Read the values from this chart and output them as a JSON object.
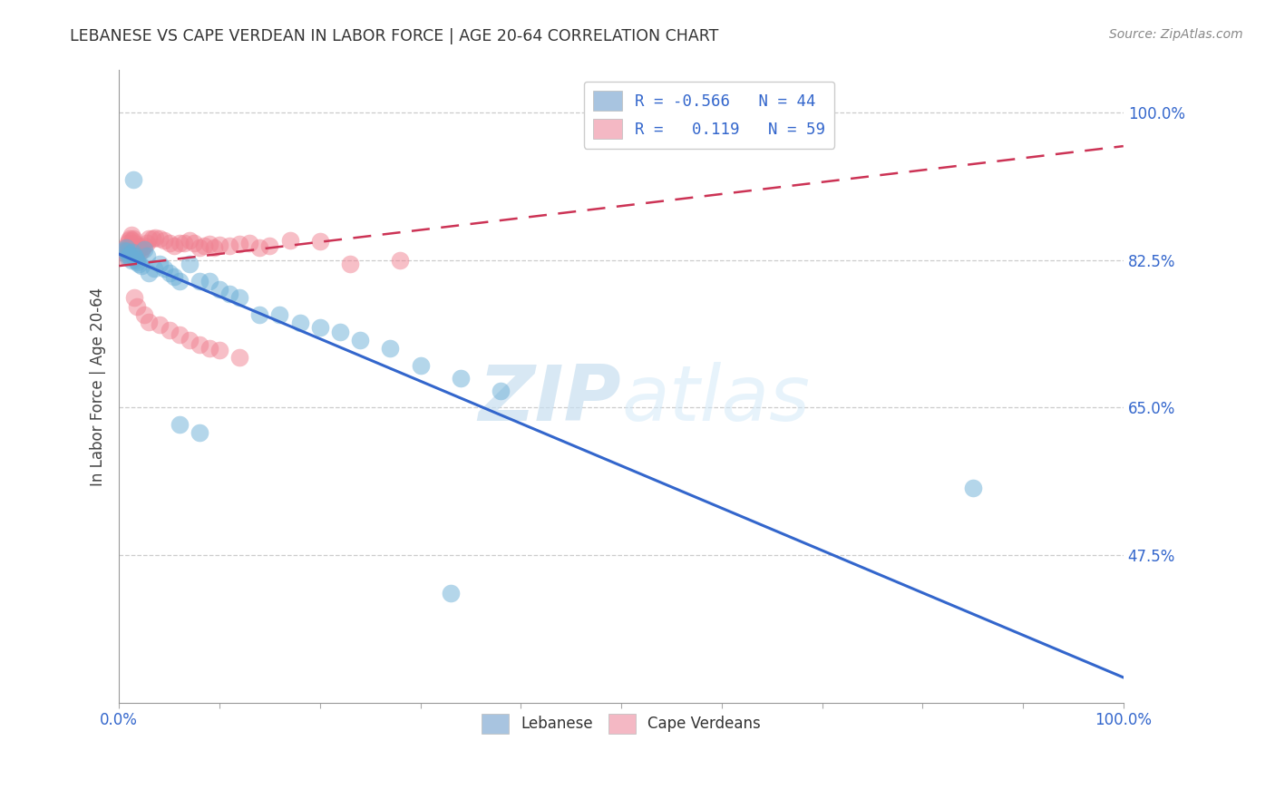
{
  "title": "LEBANESE VS CAPE VERDEAN IN LABOR FORCE | AGE 20-64 CORRELATION CHART",
  "source": "Source: ZipAtlas.com",
  "ylabel": "In Labor Force | Age 20-64",
  "watermark_zip": "ZIP",
  "watermark_atlas": "atlas",
  "xmin": 0.0,
  "xmax": 1.0,
  "ymin": 0.3,
  "ymax": 1.05,
  "ytick_vals": [
    0.475,
    0.65,
    0.825,
    1.0
  ],
  "ytick_labels": [
    "47.5%",
    "65.0%",
    "82.5%",
    "100.0%"
  ],
  "blue_color": "#6aaed6",
  "pink_color": "#f08090",
  "blue_line_y0": 0.832,
  "blue_line_y1": 0.33,
  "pink_line_y0": 0.818,
  "pink_line_y1": 0.96,
  "legend_blue_label": "R = -0.566   N = 44",
  "legend_pink_label": "R =   0.119   N = 59",
  "footer_labels": [
    "Lebanese",
    "Cape Verdeans"
  ],
  "blue_x": [
    0.005,
    0.007,
    0.008,
    0.009,
    0.01,
    0.011,
    0.012,
    0.013,
    0.014,
    0.015,
    0.016,
    0.017,
    0.018,
    0.02,
    0.022,
    0.025,
    0.028,
    0.03,
    0.035,
    0.04,
    0.045,
    0.05,
    0.055,
    0.06,
    0.07,
    0.08,
    0.09,
    0.1,
    0.11,
    0.12,
    0.14,
    0.16,
    0.18,
    0.2,
    0.22,
    0.24,
    0.27,
    0.3,
    0.34,
    0.38,
    0.06,
    0.08,
    0.85,
    0.33
  ],
  "blue_y": [
    0.836,
    0.84,
    0.835,
    0.828,
    0.83,
    0.832,
    0.825,
    0.834,
    0.92,
    0.83,
    0.828,
    0.825,
    0.822,
    0.82,
    0.818,
    0.838,
    0.83,
    0.81,
    0.815,
    0.82,
    0.815,
    0.81,
    0.805,
    0.8,
    0.82,
    0.8,
    0.8,
    0.79,
    0.785,
    0.78,
    0.76,
    0.76,
    0.75,
    0.745,
    0.74,
    0.73,
    0.72,
    0.7,
    0.685,
    0.67,
    0.63,
    0.62,
    0.555,
    0.43
  ],
  "pink_x": [
    0.004,
    0.005,
    0.006,
    0.007,
    0.008,
    0.009,
    0.01,
    0.011,
    0.012,
    0.013,
    0.014,
    0.015,
    0.016,
    0.017,
    0.018,
    0.019,
    0.02,
    0.021,
    0.022,
    0.023,
    0.025,
    0.028,
    0.03,
    0.033,
    0.036,
    0.04,
    0.045,
    0.05,
    0.055,
    0.06,
    0.065,
    0.07,
    0.075,
    0.08,
    0.085,
    0.09,
    0.095,
    0.1,
    0.11,
    0.12,
    0.13,
    0.14,
    0.15,
    0.17,
    0.2,
    0.015,
    0.018,
    0.025,
    0.03,
    0.04,
    0.05,
    0.06,
    0.07,
    0.08,
    0.09,
    0.1,
    0.12,
    0.23,
    0.28
  ],
  "pink_y": [
    0.83,
    0.835,
    0.84,
    0.832,
    0.838,
    0.845,
    0.848,
    0.85,
    0.855,
    0.848,
    0.85,
    0.845,
    0.84,
    0.838,
    0.835,
    0.842,
    0.838,
    0.835,
    0.836,
    0.84,
    0.842,
    0.845,
    0.85,
    0.85,
    0.852,
    0.85,
    0.848,
    0.845,
    0.842,
    0.845,
    0.845,
    0.848,
    0.845,
    0.84,
    0.842,
    0.844,
    0.84,
    0.843,
    0.842,
    0.844,
    0.845,
    0.84,
    0.842,
    0.848,
    0.847,
    0.78,
    0.77,
    0.76,
    0.752,
    0.748,
    0.742,
    0.736,
    0.73,
    0.725,
    0.72,
    0.718,
    0.71,
    0.82,
    0.825
  ]
}
